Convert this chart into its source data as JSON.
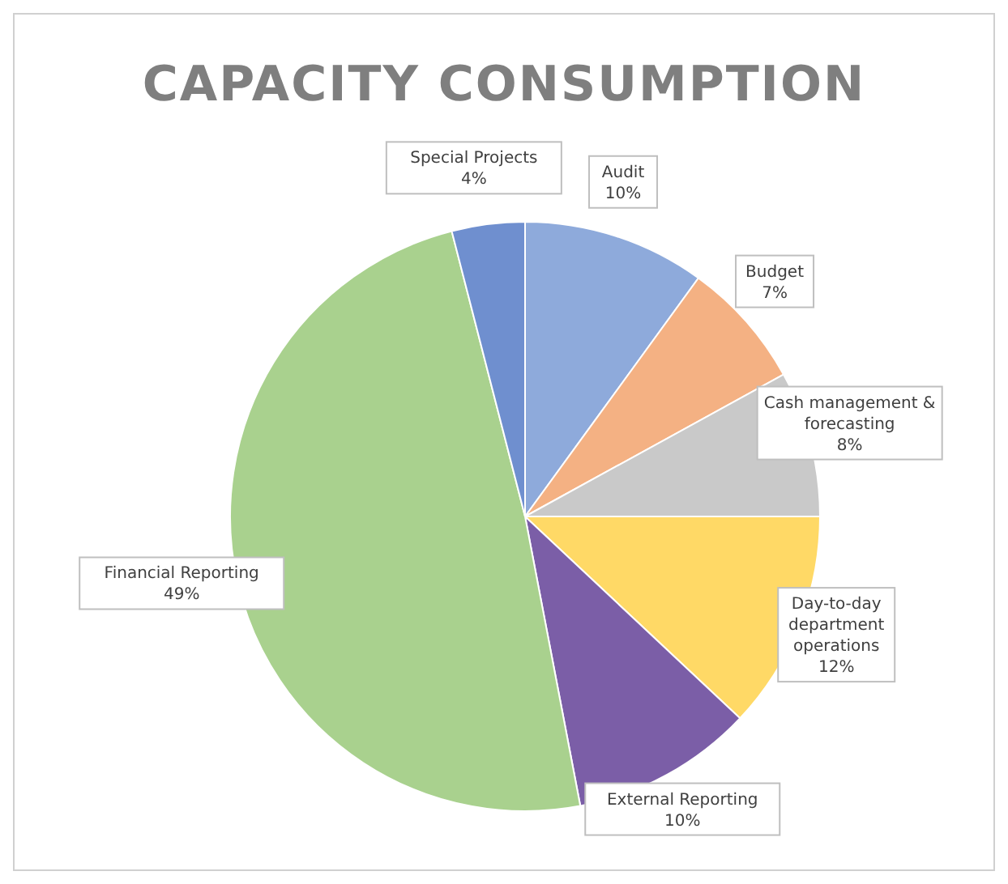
{
  "chart_data": {
    "type": "pie",
    "title": "CAPACITY CONSUMPTION",
    "categories": [
      "Audit",
      "Budget",
      "Cash management & forecasting",
      "Day-to-day department operations",
      "External Reporting",
      "Financial Reporting",
      "Special Projects"
    ],
    "values": [
      10,
      7,
      8,
      12,
      10,
      49,
      4
    ],
    "value_labels": [
      "10%",
      "7%",
      "8%",
      "12%",
      "10%",
      "49%",
      "4%"
    ],
    "colors": [
      "#8eaadb",
      "#f4b183",
      "#c9c9c9",
      "#ffd966",
      "#7b5ea7",
      "#a9d18e",
      "#6f8fcf"
    ]
  }
}
